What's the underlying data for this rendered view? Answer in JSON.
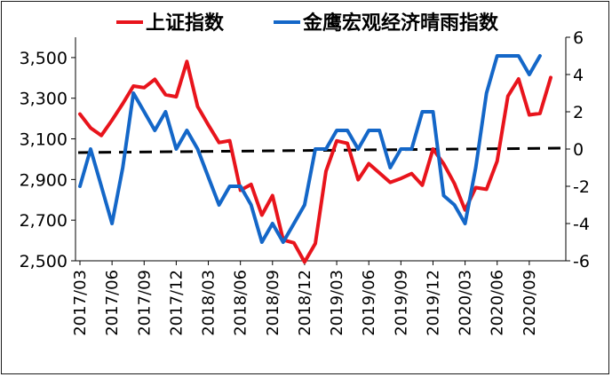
{
  "chart_data": {
    "type": "line",
    "title": "",
    "xlabel": "",
    "ylabel": "",
    "x_tick_labels": [
      "2017/03",
      "2017/06",
      "2017/09",
      "2017/12",
      "2018/03",
      "2018/06",
      "2018/09",
      "2018/12",
      "2019/03",
      "2019/06",
      "2019/09",
      "2019/12",
      "2020/03",
      "2020/06",
      "2020/09"
    ],
    "y_left": {
      "min": 2500,
      "max": 3600,
      "ticks": [
        2500,
        2700,
        2900,
        3100,
        3300,
        3500
      ],
      "tick_labels": [
        "2,500",
        "2,700",
        "2,900",
        "3,100",
        "3,300",
        "3,500"
      ]
    },
    "y_right": {
      "min": -6,
      "max": 6,
      "ticks": [
        -6,
        -4,
        -2,
        0,
        2,
        4,
        6
      ],
      "tick_labels": [
        "-6",
        "-4",
        "-2",
        "0",
        "2",
        "4",
        "6"
      ]
    },
    "legend_position": "top",
    "zero_line": {
      "style": "dashed",
      "color": "#000000"
    },
    "series": [
      {
        "name": "上证指数",
        "axis": "left",
        "color": "#e8141c",
        "x_start": "2017/03",
        "values": [
          3222,
          3154,
          3117,
          3192,
          3273,
          3360,
          3352,
          3393,
          3317,
          3307,
          3481,
          3259,
          3169,
          3082,
          3091,
          2847,
          2876,
          2725,
          2821,
          2603,
          2588,
          2494,
          2585,
          2941,
          3090,
          3078,
          2899,
          2978,
          2932,
          2886,
          2905,
          2929,
          2872,
          3050,
          2977,
          2880,
          2750,
          2860,
          2852,
          2990,
          3310,
          3395,
          3218,
          3225,
          3402
        ]
      },
      {
        "name": "金鹰宏观经济晴雨指数",
        "axis": "right",
        "color": "#1467c8",
        "x_start": "2017/03",
        "values": [
          -2,
          0,
          -2,
          -4,
          -1,
          3,
          2,
          1,
          2,
          0,
          1,
          0,
          -1.5,
          -3,
          -2,
          -2,
          -3,
          -5,
          -4,
          -5,
          -4,
          -3,
          0,
          0,
          1,
          1,
          0,
          1,
          1,
          -1,
          0,
          0,
          2,
          2,
          -2.5,
          -3,
          -4,
          -1,
          3,
          5,
          5,
          5,
          4,
          5
        ]
      }
    ]
  }
}
